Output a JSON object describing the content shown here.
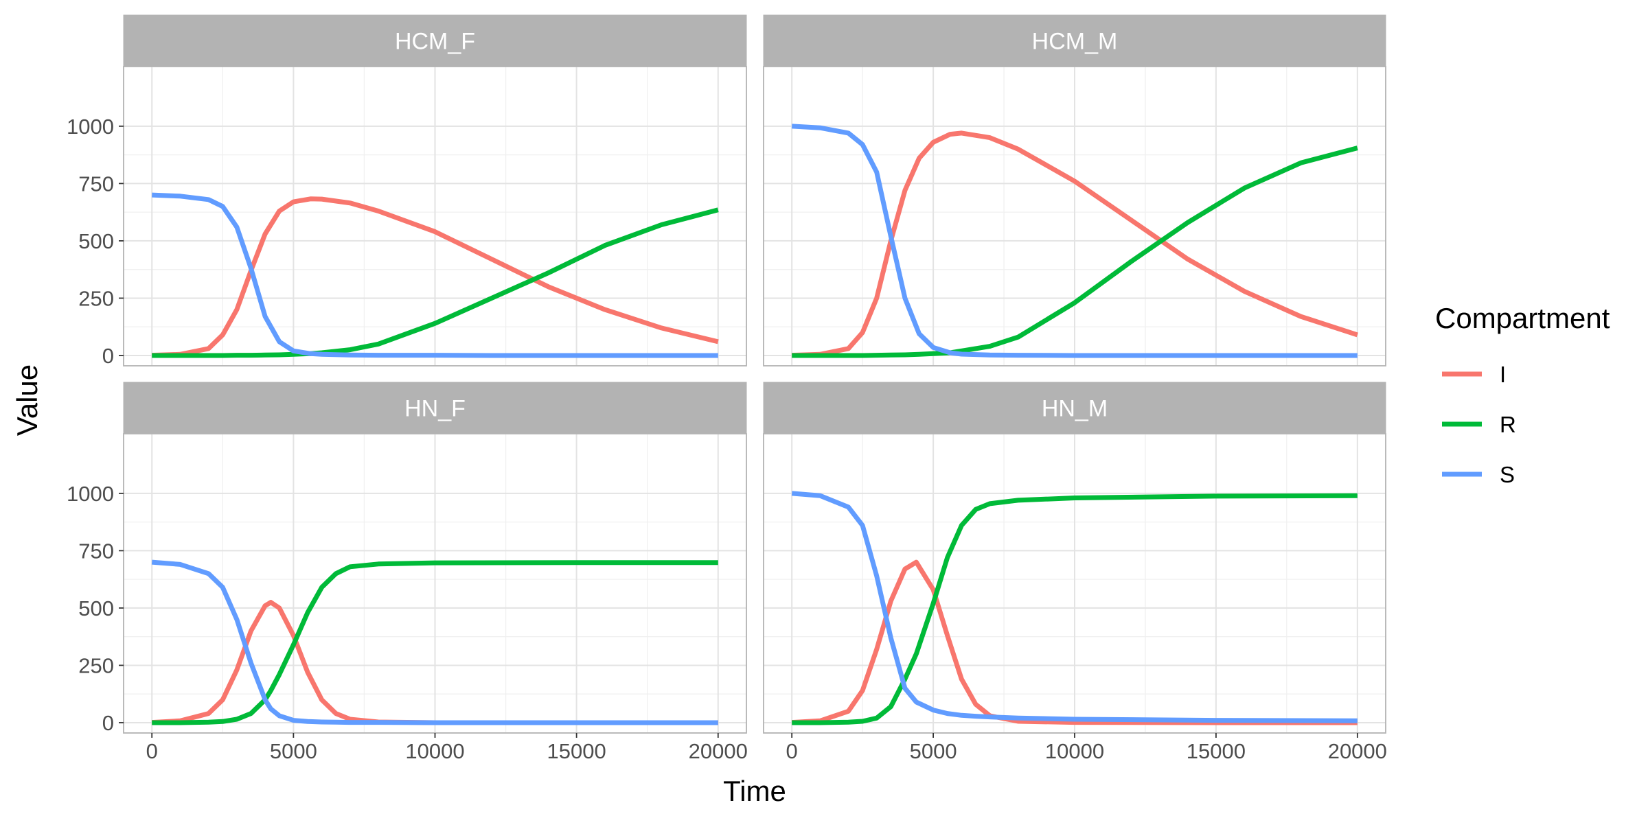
{
  "chart_data": {
    "type": "line",
    "xlabel": "Time",
    "ylabel": "Value",
    "xlim": [
      -1000,
      21000
    ],
    "ylim": [
      -45,
      1260
    ],
    "x_ticks": [
      0,
      5000,
      10000,
      15000,
      20000
    ],
    "y_ticks": [
      0,
      250,
      500,
      750,
      1000
    ],
    "grid": true,
    "legend": {
      "title": "Compartment",
      "position": "right",
      "entries": [
        {
          "name": "I",
          "color": "#F8766D"
        },
        {
          "name": "R",
          "color": "#00BA38"
        },
        {
          "name": "S",
          "color": "#619CFF"
        }
      ]
    },
    "panels": [
      {
        "title": "HCM_F",
        "x": [
          0,
          1000,
          2000,
          2500,
          3000,
          3500,
          4000,
          4500,
          5000,
          5600,
          6000,
          7000,
          8000,
          10000,
          12000,
          14000,
          16000,
          18000,
          20000
        ],
        "series": [
          {
            "name": "I",
            "values": [
              1,
              5,
              30,
              90,
              200,
              370,
              530,
              630,
              670,
              683,
              682,
              665,
              630,
              540,
              420,
              300,
              200,
              120,
              60
            ]
          },
          {
            "name": "R",
            "values": [
              0,
              0,
              0,
              0,
              1,
              1,
              2,
              3,
              5,
              8,
              12,
              25,
              50,
              140,
              250,
              360,
              480,
              570,
              635
            ]
          },
          {
            "name": "S",
            "values": [
              700,
              695,
              680,
              650,
              560,
              380,
              170,
              60,
              20,
              8,
              5,
              2,
              1,
              1,
              0,
              0,
              0,
              0,
              0
            ]
          }
        ]
      },
      {
        "title": "HCM_M",
        "x": [
          0,
          1000,
          2000,
          2500,
          3000,
          3500,
          4000,
          4500,
          5000,
          5600,
          6000,
          7000,
          8000,
          10000,
          12000,
          14000,
          16000,
          18000,
          20000
        ],
        "series": [
          {
            "name": "I",
            "values": [
              1,
              5,
              30,
              100,
              250,
              500,
              720,
              860,
              930,
              965,
              970,
              950,
              900,
              760,
              590,
              420,
              280,
              170,
              90
            ]
          },
          {
            "name": "R",
            "values": [
              0,
              0,
              0,
              0,
              1,
              2,
              3,
              5,
              8,
              12,
              20,
              40,
              80,
              230,
              410,
              580,
              730,
              840,
              905
            ]
          },
          {
            "name": "S",
            "values": [
              1000,
              993,
              970,
              920,
              800,
              520,
              250,
              95,
              35,
              12,
              6,
              2,
              1,
              0,
              0,
              0,
              0,
              0,
              0
            ]
          }
        ]
      },
      {
        "title": "HN_F",
        "x": [
          0,
          1000,
          2000,
          2500,
          3000,
          3500,
          4000,
          4200,
          4500,
          5000,
          5500,
          6000,
          6500,
          7000,
          8000,
          10000,
          15000,
          20000
        ],
        "series": [
          {
            "name": "I",
            "values": [
              1,
              8,
              40,
              100,
              230,
              400,
              510,
              525,
              500,
              380,
              220,
              100,
              40,
              15,
              3,
              0,
              0,
              0
            ]
          },
          {
            "name": "R",
            "values": [
              0,
              0,
              2,
              5,
              15,
              40,
              100,
              140,
              210,
              340,
              480,
              590,
              650,
              680,
              692,
              697,
              698,
              698
            ]
          },
          {
            "name": "S",
            "values": [
              700,
              690,
              650,
              590,
              450,
              260,
              100,
              60,
              30,
              10,
              5,
              3,
              2,
              1,
              1,
              0,
              0,
              0
            ]
          }
        ]
      },
      {
        "title": "HN_M",
        "x": [
          0,
          1000,
          2000,
          2500,
          3000,
          3500,
          4000,
          4400,
          5000,
          5500,
          6000,
          6500,
          7000,
          8000,
          10000,
          15000,
          20000
        ],
        "series": [
          {
            "name": "I",
            "values": [
              1,
              8,
              50,
              140,
              320,
              530,
              670,
              700,
              580,
              380,
              190,
              80,
              30,
              6,
              1,
              0,
              0
            ]
          },
          {
            "name": "R",
            "values": [
              0,
              0,
              2,
              6,
              20,
              70,
              190,
              300,
              520,
              720,
              860,
              930,
              955,
              970,
              980,
              988,
              990
            ]
          },
          {
            "name": "S",
            "values": [
              1000,
              990,
              940,
              860,
              640,
              370,
              150,
              90,
              55,
              40,
              32,
              28,
              25,
              20,
              15,
              10,
              8
            ]
          }
        ]
      }
    ]
  }
}
